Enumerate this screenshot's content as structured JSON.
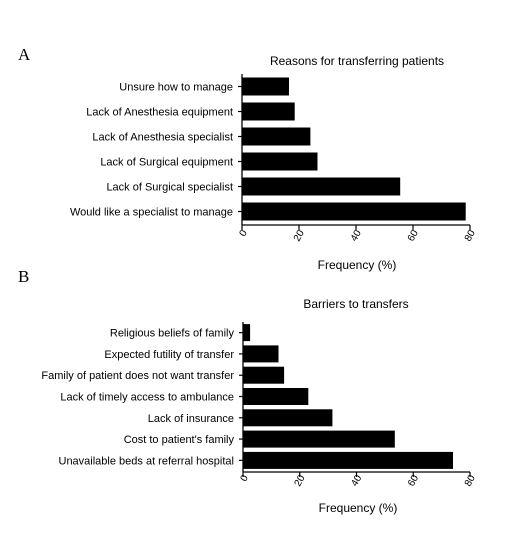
{
  "chart_data": [
    {
      "panel_label": "A",
      "type": "bar",
      "orientation": "horizontal",
      "title": "Reasons for transferring patients",
      "xlabel": "Frequency (%)",
      "ylabel": "",
      "xlim": [
        0,
        80
      ],
      "x_ticks": [
        0,
        20,
        40,
        60,
        80
      ],
      "grid": false,
      "categories": [
        "Unsure how to manage",
        "Lack of Anesthesia equipment",
        "Lack of Anesthesia specialist",
        "Lack of Surgical equipment",
        "Lack of Surgical specialist",
        "Would like a specialist to manage"
      ],
      "values": [
        16.5,
        18.5,
        24,
        26.5,
        55.5,
        78.5
      ],
      "bar_color": "#000000"
    },
    {
      "panel_label": "B",
      "type": "bar",
      "orientation": "horizontal",
      "title": "Barriers to transfers",
      "xlabel": "Frequency (%)",
      "ylabel": "",
      "xlim": [
        0,
        80
      ],
      "x_ticks": [
        0,
        20,
        40,
        60,
        80
      ],
      "grid": false,
      "categories": [
        "Religious beliefs of family",
        "Expected futility of transfer",
        "Family of patient does not want transfer",
        "Lack of timely access to ambulance",
        "Lack of insurance",
        "Cost to patient's family",
        "Unavailable beds at referral hospital"
      ],
      "values": [
        2.5,
        12.5,
        14.5,
        23,
        31.5,
        53.5,
        74
      ],
      "bar_color": "#000000"
    }
  ]
}
